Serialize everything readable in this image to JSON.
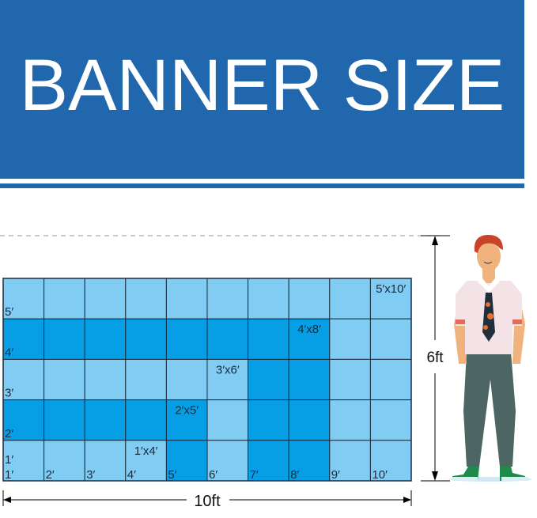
{
  "title": "BANNER SIZE",
  "colors": {
    "brand_blue": "#2167ad",
    "light_cell": "#80ccf3",
    "dark_cell": "#069fe6",
    "grid_line": "#1a2a3a"
  },
  "grid": {
    "columns": 10,
    "rows": 5,
    "dark_cells_by_row_top_to_bottom": [
      [],
      [
        0,
        1,
        2,
        3,
        4,
        5,
        6,
        7
      ],
      [
        6,
        7
      ],
      [
        0,
        1,
        2,
        3,
        4,
        6,
        7
      ],
      [
        4,
        6,
        7
      ]
    ],
    "row_labels": [
      "5′",
      "4′",
      "3′",
      "2′",
      "1′"
    ],
    "column_labels": [
      "1′",
      "2′",
      "3′",
      "4′",
      "5′",
      "6′",
      "7′",
      "8′",
      "9′",
      "10′"
    ],
    "size_labels": [
      {
        "text": "1′x4′",
        "row": 4,
        "col": 3
      },
      {
        "text": "2′x5′",
        "row": 3,
        "col": 4
      },
      {
        "text": "3′x6′",
        "row": 2,
        "col": 5
      },
      {
        "text": "4′x8′",
        "row": 1,
        "col": 7
      },
      {
        "text": "5′x10′",
        "row": 0,
        "col": 9
      }
    ]
  },
  "dimensions": {
    "width_label": "10ft",
    "height_label": "6ft"
  },
  "figure": {
    "icon": "standing-man-illustration"
  }
}
